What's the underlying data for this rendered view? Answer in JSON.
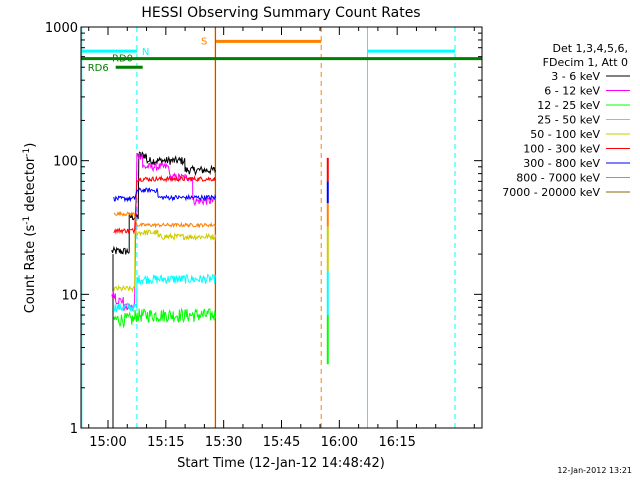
{
  "chart_data": {
    "type": "line",
    "title": "HESSI Observing Summary Count Rates",
    "xlabel": "Start Time (12-Jan-12 14:48:42)",
    "ylabel_main": "Count Rate (s",
    "ylabel_sup1": "-1",
    "ylabel_mid": " detector",
    "ylabel_sup2": "-1",
    "ylabel_end": ")",
    "yscale": "log",
    "ylim": [
      1,
      1000
    ],
    "xlim_minutes": [
      -7,
      97
    ],
    "y_ticks": [
      {
        "value": 1,
        "label": "1"
      },
      {
        "value": 10,
        "label": "10"
      },
      {
        "value": 100,
        "label": "100"
      },
      {
        "value": 1000,
        "label": "1000"
      }
    ],
    "x_ticks": [
      {
        "minute": 0,
        "label": "15:00"
      },
      {
        "minute": 15,
        "label": "15:15"
      },
      {
        "minute": 30,
        "label": "15:30"
      },
      {
        "minute": 45,
        "label": "15:45"
      },
      {
        "minute": 60,
        "label": "16:00"
      },
      {
        "minute": 75,
        "label": "16:15"
      }
    ],
    "legend_header": [
      "Det 1,3,4,5,6,",
      "FDecim 1, Att 0"
    ],
    "series": [
      {
        "name": "3 - 6 keV",
        "color": "#000000",
        "segments": [
          [
            1,
            5.5,
            21
          ],
          [
            5.5,
            8,
            38
          ],
          [
            8,
            10,
            110
          ],
          [
            10,
            20,
            100
          ],
          [
            20,
            28,
            85
          ]
        ],
        "noise": 0.07
      },
      {
        "name": "6 - 12 keV",
        "color": "#ff00ff",
        "segments": [
          [
            1,
            2,
            10
          ],
          [
            2,
            4,
            9
          ],
          [
            4,
            7,
            8
          ],
          [
            7.5,
            9,
            110
          ],
          [
            9,
            16,
            90
          ],
          [
            16,
            22,
            75
          ],
          [
            22,
            27.5,
            50
          ]
        ],
        "noise": 0.07
      },
      {
        "name": "12 - 25 keV",
        "color": "#00ff00",
        "segments": [
          [
            1.5,
            7,
            6.5
          ],
          [
            7,
            28,
            7
          ]
        ],
        "noise": 0.12
      },
      {
        "name": "25 - 50 keV",
        "color": "#00ffff",
        "segments": [
          [
            1.5,
            7.5,
            8
          ],
          [
            7.5,
            28,
            13
          ]
        ],
        "noise": 0.08
      },
      {
        "name": "50 - 100 keV",
        "color": "#cccc00",
        "segments": [
          [
            1.5,
            7,
            11
          ],
          [
            7,
            13,
            29
          ],
          [
            13,
            28,
            27
          ]
        ],
        "noise": 0.05
      },
      {
        "name": "100 - 300 keV",
        "color": "#ff0000",
        "segments": [
          [
            1.5,
            7,
            30
          ],
          [
            7.5,
            28,
            73
          ]
        ],
        "noise": 0.04
      },
      {
        "name": "300 - 800 keV",
        "color": "#0000ff",
        "segments": [
          [
            1.5,
            7,
            52
          ],
          [
            7.5,
            13,
            60
          ],
          [
            13,
            28,
            53
          ]
        ],
        "noise": 0.04
      },
      {
        "name": "800 - 7000 keV",
        "color": "#ff8000",
        "segments": [
          [
            1.5,
            7,
            40
          ],
          [
            7.5,
            28,
            33
          ]
        ],
        "noise": 0.03
      },
      {
        "name": "7000 - 20000 keV",
        "color": "#8b6508",
        "segments": [],
        "noise": 0
      }
    ],
    "spike": {
      "minute": 57,
      "bands": [
        {
          "from": 105,
          "to": 70,
          "color": "#ff0000"
        },
        {
          "from": 70,
          "to": 48,
          "color": "#0000ff"
        },
        {
          "from": 48,
          "to": 32,
          "color": "#ff8000"
        },
        {
          "from": 32,
          "to": 15,
          "color": "#cccc00"
        },
        {
          "from": 15,
          "to": 7,
          "color": "#00ffff"
        },
        {
          "from": 7,
          "to": 3,
          "color": "#00ff00"
        }
      ]
    },
    "start_minute": 1.3,
    "vertical_markers": [
      {
        "minute": -6.8,
        "style": "solid",
        "color": "#00ffff"
      },
      {
        "minute": 7.5,
        "style": "dashed",
        "color": "#00ffff"
      },
      {
        "minute": 27.8,
        "style": "solid",
        "color": "#ff8000"
      },
      {
        "minute": 27.9,
        "style": "solid",
        "color": "#8b6508"
      },
      {
        "minute": 55.3,
        "style": "dashed",
        "color": "#ff8000"
      },
      {
        "minute": 67.3,
        "style": "solid",
        "color": "#00ffff"
      },
      {
        "minute": 90,
        "style": "dashed",
        "color": "#00ffff"
      }
    ],
    "status_bars": [
      {
        "label": "",
        "from": -7,
        "to": 7.5,
        "value": 660,
        "color": "#00ffff"
      },
      {
        "label": "N",
        "from": 7.5,
        "to": 7.5,
        "value": 660,
        "color": "#00ffff"
      },
      {
        "label": "",
        "from": 67.3,
        "to": 90,
        "value": 660,
        "color": "#00ffff"
      },
      {
        "label": "S",
        "from": 28,
        "to": 55.3,
        "value": 780,
        "color": "#ff8000"
      },
      {
        "label": "",
        "from": -7,
        "to": 97,
        "value": 580,
        "color": "#007f00"
      },
      {
        "label": "RD0",
        "from": 0,
        "to": 0,
        "value": 580,
        "color": "#007f00"
      },
      {
        "label": "RD6",
        "from": 2,
        "to": 9,
        "value": 500,
        "color": "#007f00"
      }
    ],
    "timestamp": "12-Jan-2012 13:21"
  }
}
